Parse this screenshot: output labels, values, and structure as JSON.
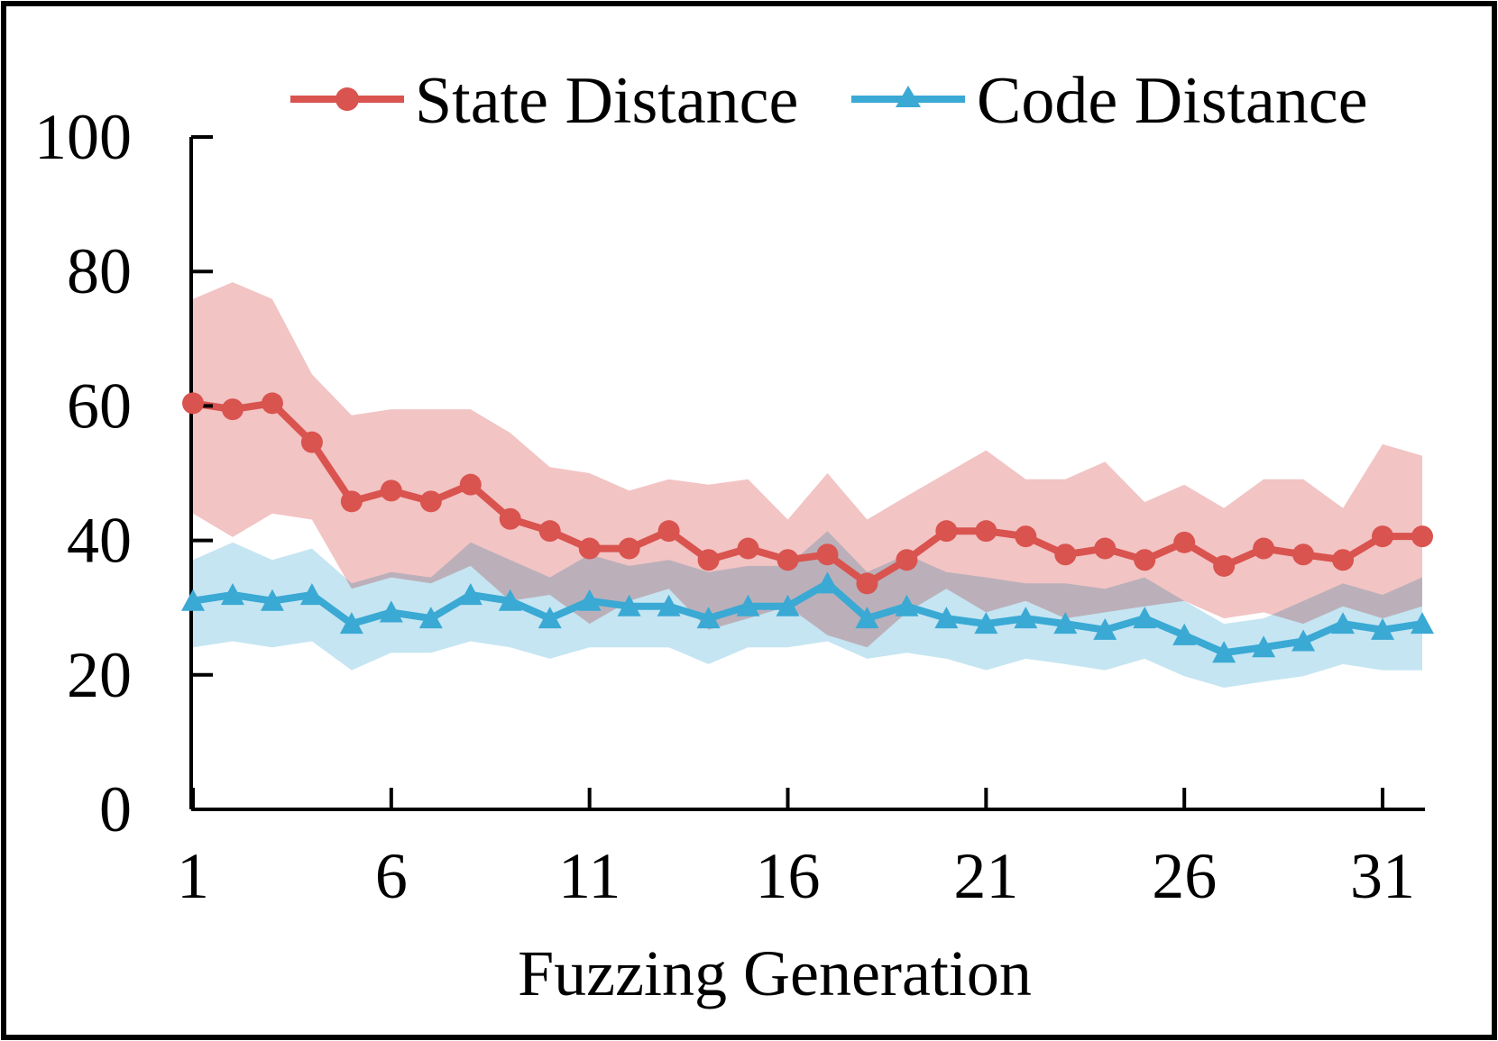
{
  "chart_data": {
    "type": "line",
    "title": "",
    "xlabel": "Fuzzing Generation",
    "ylabel": "",
    "xlim": [
      1,
      32
    ],
    "ylim": [
      0,
      100
    ],
    "yticks": [
      0,
      20,
      40,
      60,
      80,
      100
    ],
    "xticks": [
      1,
      6,
      11,
      16,
      21,
      26,
      31
    ],
    "legend_position": "top",
    "x": [
      1,
      2,
      3,
      4,
      5,
      6,
      7,
      8,
      9,
      10,
      11,
      12,
      13,
      14,
      15,
      16,
      17,
      18,
      19,
      20,
      21,
      22,
      23,
      24,
      25,
      26,
      27,
      28,
      29,
      30,
      31,
      32
    ],
    "series": [
      {
        "name": "State Distance",
        "color": "#d9534f",
        "band_color": "#f2c4c4",
        "marker": "circle",
        "values": [
          60.4,
          59.5,
          60.4,
          54.6,
          45.8,
          47.4,
          45.8,
          48.3,
          43.2,
          41.4,
          38.8,
          38.8,
          41.4,
          37.1,
          38.8,
          37.1,
          37.9,
          33.6,
          37.1,
          41.4,
          41.4,
          40.6,
          37.9,
          38.8,
          37.1,
          39.7,
          36.2,
          38.8,
          37.9,
          37.1,
          40.6,
          40.6
        ],
        "band_upper": [
          75.9,
          78.4,
          75.9,
          64.7,
          58.6,
          59.5,
          59.5,
          59.5,
          56.0,
          50.9,
          50.0,
          47.4,
          49.1,
          48.3,
          49.1,
          43.1,
          50.0,
          43.1,
          46.6,
          50.0,
          53.4,
          49.1,
          49.1,
          51.7,
          45.7,
          48.3,
          44.8,
          49.1,
          49.1,
          44.8,
          54.3,
          52.6
        ],
        "band_lower": [
          44.0,
          40.5,
          44.0,
          43.1,
          32.8,
          34.5,
          33.6,
          36.2,
          31.0,
          31.9,
          27.6,
          31.0,
          32.8,
          26.7,
          28.4,
          30.2,
          25.9,
          24.1,
          29.3,
          32.8,
          29.3,
          31.0,
          28.4,
          29.3,
          30.2,
          31.0,
          28.4,
          29.3,
          27.6,
          30.2,
          28.4,
          30.2
        ]
      },
      {
        "name": "Code Distance",
        "color": "#3aa9d4",
        "band_color": "#c5e5f2",
        "marker": "triangle",
        "values": [
          31.0,
          31.9,
          31.0,
          31.9,
          27.6,
          29.3,
          28.4,
          31.9,
          31.0,
          28.4,
          31.0,
          30.2,
          30.2,
          28.4,
          30.2,
          30.2,
          33.6,
          28.4,
          30.2,
          28.4,
          27.6,
          28.4,
          27.6,
          26.7,
          28.4,
          25.9,
          23.3,
          24.1,
          25.0,
          27.6,
          26.7,
          27.6
        ],
        "band_upper": [
          37.1,
          39.7,
          37.1,
          38.8,
          33.6,
          35.3,
          34.5,
          39.7,
          37.1,
          34.5,
          37.9,
          36.2,
          37.1,
          35.3,
          36.2,
          36.2,
          41.4,
          35.3,
          37.9,
          35.3,
          34.5,
          33.6,
          33.6,
          32.8,
          34.5,
          31.0,
          27.6,
          28.4,
          31.0,
          33.6,
          31.9,
          34.5
        ],
        "band_lower": [
          24.1,
          25.0,
          24.1,
          25.0,
          20.7,
          23.3,
          23.3,
          25.0,
          24.1,
          22.4,
          24.1,
          24.1,
          24.1,
          21.6,
          24.1,
          24.1,
          25.0,
          22.4,
          23.3,
          22.4,
          20.7,
          22.4,
          21.6,
          20.7,
          22.4,
          19.8,
          18.1,
          19.0,
          19.8,
          21.6,
          20.7,
          20.7
        ]
      }
    ]
  }
}
